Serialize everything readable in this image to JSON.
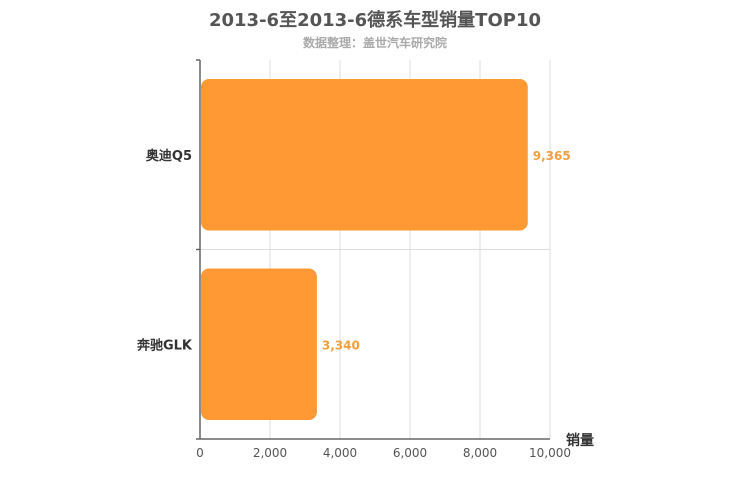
{
  "chart_data": {
    "type": "bar",
    "orientation": "horizontal",
    "title": "2013-6至2013-6德系车型销量TOP10",
    "subtitle": "数据整理：盖世汽车研究院",
    "categories": [
      "奥迪Q5",
      "奔驰GLK"
    ],
    "values": [
      9365,
      3340
    ],
    "value_labels": [
      "9,365",
      "3,340"
    ],
    "xlabel": "销量",
    "ylabel": "",
    "xlim": [
      0,
      10000
    ],
    "x_ticks": [
      0,
      2000,
      4000,
      6000,
      8000,
      10000
    ],
    "x_tick_labels": [
      "0",
      "2,000",
      "4,000",
      "6,000",
      "8,000",
      "10,000"
    ],
    "grid": true,
    "bar_color": "#ff9933",
    "label_color": "#f0a040"
  }
}
